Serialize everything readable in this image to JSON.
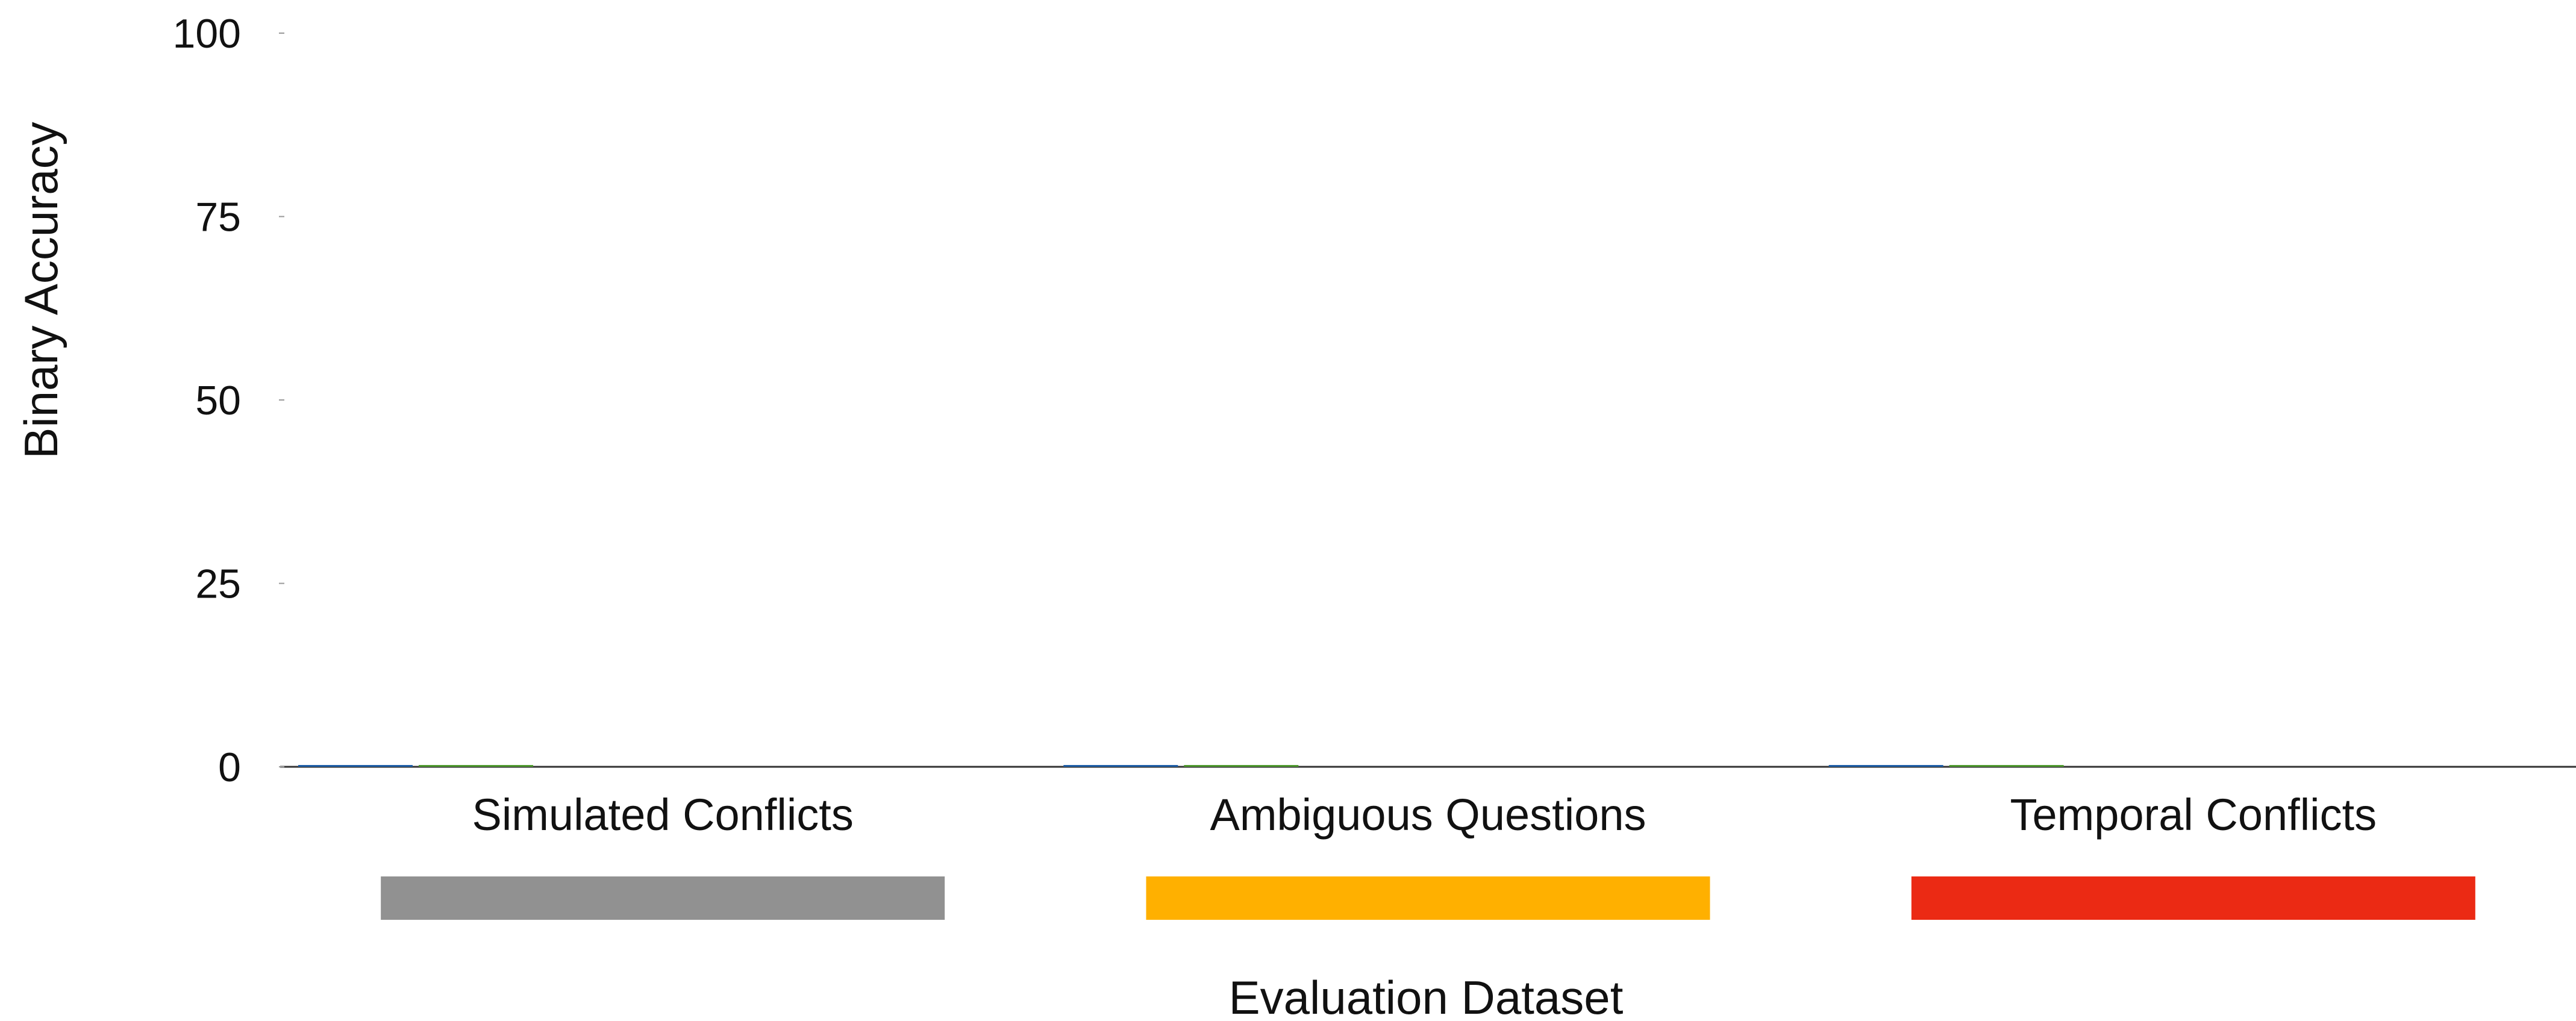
{
  "chart_data": {
    "type": "bar",
    "title": "",
    "xlabel": "Evaluation Dataset",
    "ylabel": "Binary Accuracy",
    "ylim": [
      0,
      100
    ],
    "yticks": [
      "0",
      "25",
      "50",
      "75",
      "100"
    ],
    "categories": [
      "Simulated Conflicts",
      "Ambiguous Questions",
      "Temporal Conflicts"
    ],
    "category_colors": [
      "#919191",
      "#FFB000",
      "#EB2A14"
    ],
    "series": [
      {
        "color": "#1f5fa8",
        "values": [
          0,
          0,
          0
        ]
      },
      {
        "color": "#4f9a2f",
        "values": [
          0,
          0,
          0
        ]
      }
    ],
    "grid": false,
    "legend": "none"
  }
}
